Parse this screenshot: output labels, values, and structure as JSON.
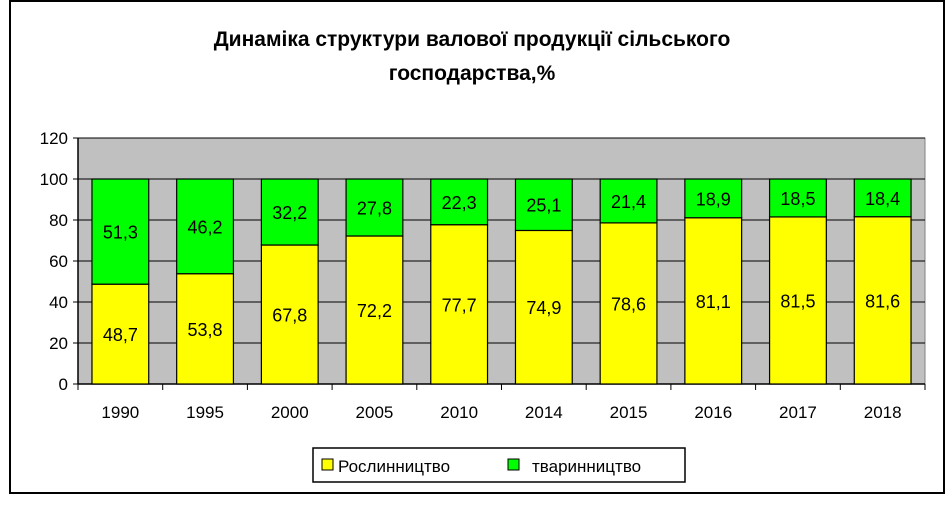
{
  "chart_data": {
    "type": "bar",
    "stacked": true,
    "title_lines": [
      "Динаміка структури валової продукції сільського",
      "господарства,%"
    ],
    "xlabel": "",
    "ylabel": "",
    "categories": [
      "1990",
      "1995",
      "2000",
      "2005",
      "2010",
      "2014",
      "2015",
      "2016",
      "2017",
      "2018"
    ],
    "series": [
      {
        "name": "Рослинництво",
        "color": "#FFFF00",
        "values": [
          48.7,
          53.8,
          67.8,
          72.2,
          77.7,
          74.9,
          78.6,
          81.1,
          81.5,
          81.6
        ],
        "labels": [
          "48,7",
          "53,8",
          "67,8",
          "72,2",
          "77,7",
          "74,9",
          "78,6",
          "81,1",
          "81,5",
          "81,6"
        ]
      },
      {
        "name": "тваринництво",
        "color": "#00FF00",
        "values": [
          51.3,
          46.2,
          32.2,
          27.8,
          22.3,
          25.1,
          21.4,
          18.9,
          18.5,
          18.4
        ],
        "labels": [
          "51,3",
          "46,2",
          "32,2",
          "27,8",
          "22,3",
          "25,1",
          "21,4",
          "18,9",
          "18,5",
          "18,4"
        ]
      }
    ],
    "ylim": [
      0,
      120
    ],
    "yticks": [
      "0",
      "20",
      "40",
      "60",
      "80",
      "100",
      "120"
    ],
    "grid": true,
    "plot_background": "#C0C0C0",
    "legend_position": "bottom"
  }
}
